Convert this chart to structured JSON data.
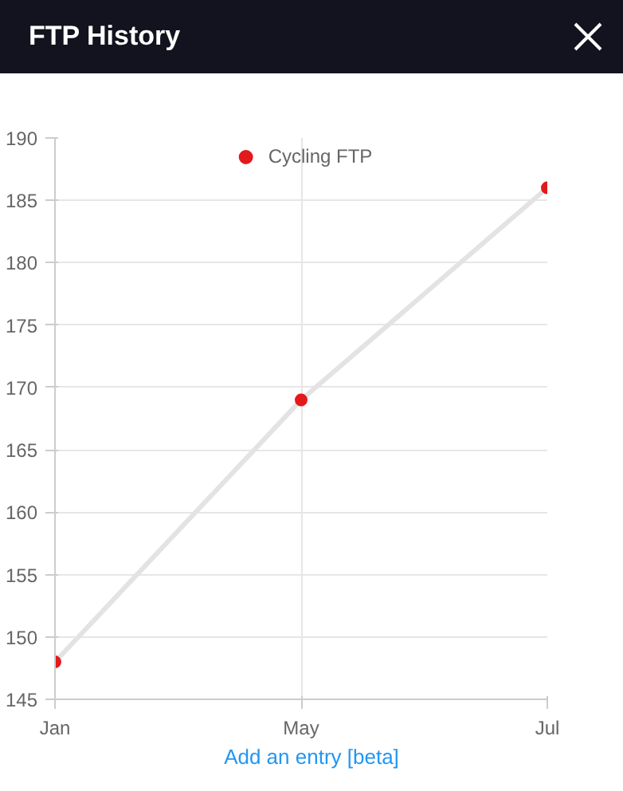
{
  "chart_data": {
    "type": "line",
    "title": "FTP History",
    "categories": [
      "Jan",
      "May",
      "Jul"
    ],
    "series": [
      {
        "name": "Cycling FTP",
        "color": "#e31a1c",
        "values": [
          148,
          169,
          186
        ]
      }
    ],
    "ylim": [
      145,
      190
    ],
    "yticks": [
      145,
      150,
      155,
      160,
      165,
      170,
      175,
      180,
      185,
      190
    ],
    "grid": true,
    "legend": "top",
    "marker": "circle",
    "line_style": "solid",
    "annotations": [
      "Add an entry [beta]"
    ]
  }
}
